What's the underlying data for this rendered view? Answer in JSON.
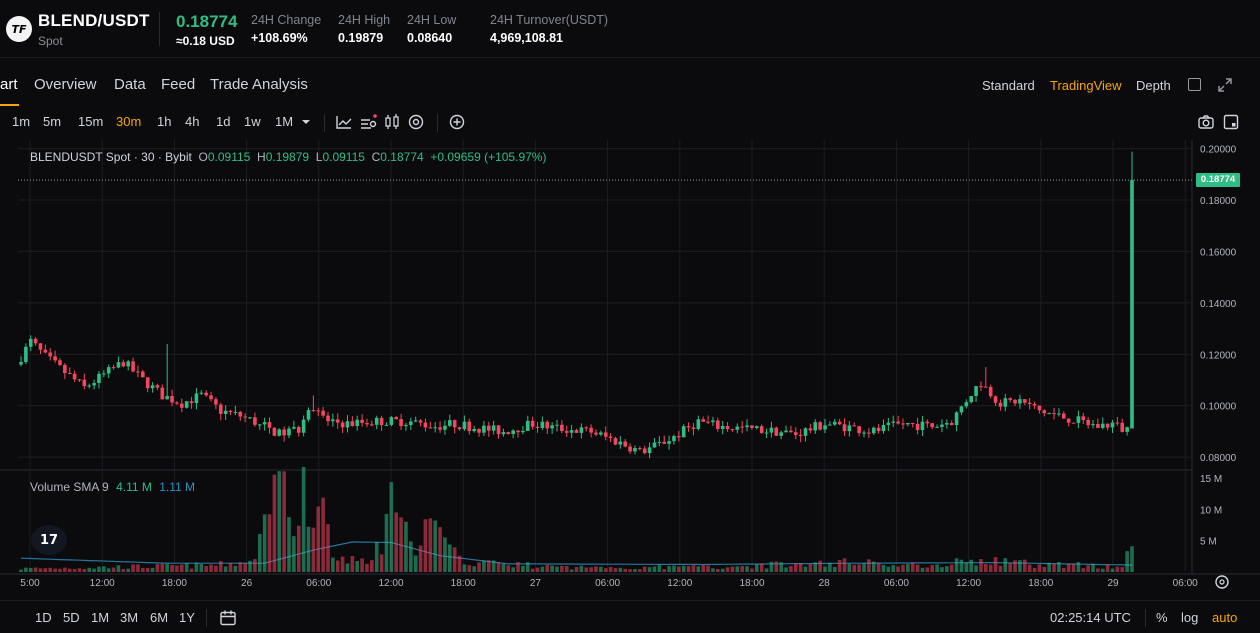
{
  "ticker": {
    "logo_text": "TF",
    "pair": "BLEND/USDT",
    "market": "Spot",
    "last_price": "0.18774",
    "last_price_usd": "≈0.18 USD",
    "stats": [
      {
        "label": "24H Change",
        "value": "+108.69%"
      },
      {
        "label": "24H High",
        "value": "0.19879"
      },
      {
        "label": "24H Low",
        "value": "0.08640"
      },
      {
        "label": "24H Turnover(USDT)",
        "value": "4,969,108.81"
      }
    ]
  },
  "tabs": [
    {
      "label": "art"
    },
    {
      "label": "Overview"
    },
    {
      "label": "Data"
    },
    {
      "label": "Feed"
    },
    {
      "label": "Trade Analysis"
    }
  ],
  "views": [
    {
      "label": "Standard"
    },
    {
      "label": "TradingView"
    },
    {
      "label": "Depth"
    }
  ],
  "intervals": [
    "1m",
    "5m",
    "15m",
    "30m",
    "1h",
    "4h",
    "1d",
    "1w",
    "1M"
  ],
  "active_interval": "30m",
  "legend": {
    "symbol": "BLENDUSDT Spot · 30 · Bybit",
    "open_label": "O",
    "open": "0.09115",
    "high_label": "H",
    "high": "0.19879",
    "low_label": "L",
    "low": "0.09115",
    "close_label": "C",
    "close": "0.18774",
    "change": "+0.09659 (+105.97%)"
  },
  "volume_legend": {
    "label": "Volume SMA 9",
    "value1": "4.11 M",
    "value2": "1.11 M"
  },
  "tv_logo_text": "17",
  "price_badge": "0.18774",
  "bottom": {
    "ranges": [
      "1D",
      "5D",
      "1M",
      "3M",
      "6M",
      "1Y"
    ],
    "time": "02:25:14 UTC",
    "percent": "%",
    "log": "log",
    "auto": "auto"
  },
  "colors": {
    "up": "#2ebd85",
    "down": "#f6465d",
    "accent": "#f7a600",
    "sma": "#2d8fbf"
  },
  "chart_data": {
    "type": "candlestick",
    "interval": "30m",
    "y_ticks": [
      "0.20000",
      "0.18000",
      "0.16000",
      "0.14000",
      "0.12000",
      "0.10000",
      "0.08000"
    ],
    "ylim": [
      0.075,
      0.201
    ],
    "volume_ticks": [
      "15 M",
      "10 M",
      "5 M"
    ],
    "volume_ylim": [
      0,
      15
    ],
    "x_ticks": [
      "5:00",
      "12:00",
      "18:00",
      "26",
      "06:00",
      "12:00",
      "18:00",
      "27",
      "06:00",
      "12:00",
      "18:00",
      "28",
      "06:00",
      "12:00",
      "18:00",
      "29",
      "06:00"
    ],
    "last_price": 0.18774,
    "price_keypoints": [
      [
        0,
        0.116
      ],
      [
        3,
        0.125
      ],
      [
        6,
        0.119
      ],
      [
        10,
        0.113
      ],
      [
        14,
        0.107
      ],
      [
        18,
        0.112
      ],
      [
        22,
        0.117
      ],
      [
        26,
        0.11
      ],
      [
        30,
        0.104
      ],
      [
        34,
        0.101
      ],
      [
        38,
        0.104
      ],
      [
        42,
        0.098
      ],
      [
        46,
        0.096
      ],
      [
        50,
        0.093
      ],
      [
        54,
        0.089
      ],
      [
        58,
        0.091
      ],
      [
        60,
        0.1
      ],
      [
        64,
        0.094
      ],
      [
        68,
        0.093
      ],
      [
        74,
        0.094
      ],
      [
        80,
        0.094
      ],
      [
        86,
        0.092
      ],
      [
        90,
        0.093
      ],
      [
        96,
        0.091
      ],
      [
        100,
        0.09
      ],
      [
        106,
        0.093
      ],
      [
        112,
        0.091
      ],
      [
        118,
        0.09
      ],
      [
        122,
        0.087
      ],
      [
        126,
        0.084
      ],
      [
        128,
        0.082
      ],
      [
        132,
        0.085
      ],
      [
        136,
        0.089
      ],
      [
        140,
        0.094
      ],
      [
        144,
        0.092
      ],
      [
        150,
        0.091
      ],
      [
        156,
        0.09
      ],
      [
        160,
        0.089
      ],
      [
        166,
        0.093
      ],
      [
        170,
        0.092
      ],
      [
        176,
        0.09
      ],
      [
        182,
        0.093
      ],
      [
        188,
        0.092
      ],
      [
        192,
        0.094
      ],
      [
        196,
        0.105
      ],
      [
        198,
        0.109
      ],
      [
        202,
        0.101
      ],
      [
        206,
        0.102
      ],
      [
        210,
        0.098
      ],
      [
        214,
        0.096
      ],
      [
        218,
        0.094
      ],
      [
        222,
        0.092
      ],
      [
        225,
        0.093
      ],
      [
        227,
        0.091
      ]
    ],
    "spikes": [
      {
        "index": 198,
        "high": 0.115
      },
      {
        "index": 30,
        "high": 0.124
      },
      {
        "index": 60,
        "high": 0.104
      },
      {
        "index": 228,
        "open": 0.09115,
        "high": 0.19879,
        "low": 0.09115,
        "close": 0.18774
      }
    ],
    "volume_keypoints": [
      [
        0,
        0.6
      ],
      [
        20,
        0.9
      ],
      [
        40,
        1.2
      ],
      [
        48,
        2.0
      ],
      [
        50,
        8.5
      ],
      [
        52,
        15.5
      ],
      [
        54,
        15.5
      ],
      [
        56,
        6.0
      ],
      [
        58,
        14.0
      ],
      [
        60,
        6.5
      ],
      [
        62,
        12.5
      ],
      [
        64,
        2.5
      ],
      [
        72,
        1.5
      ],
      [
        76,
        11.0
      ],
      [
        80,
        4.5
      ],
      [
        84,
        8.0
      ],
      [
        90,
        2.0
      ],
      [
        110,
        0.8
      ],
      [
        140,
        0.9
      ],
      [
        168,
        1.6
      ],
      [
        172,
        2.2
      ],
      [
        180,
        1.0
      ],
      [
        196,
        2.0
      ],
      [
        210,
        1.3
      ],
      [
        226,
        1.1
      ],
      [
        228,
        4.1
      ]
    ],
    "sma_keypoints": [
      [
        0,
        2.2
      ],
      [
        30,
        1.4
      ],
      [
        50,
        1.4
      ],
      [
        60,
        3.5
      ],
      [
        68,
        4.8
      ],
      [
        76,
        4.7
      ],
      [
        86,
        2.6
      ],
      [
        100,
        1.3
      ],
      [
        140,
        1.2
      ],
      [
        170,
        1.4
      ],
      [
        200,
        1.5
      ],
      [
        228,
        1.1
      ]
    ]
  }
}
